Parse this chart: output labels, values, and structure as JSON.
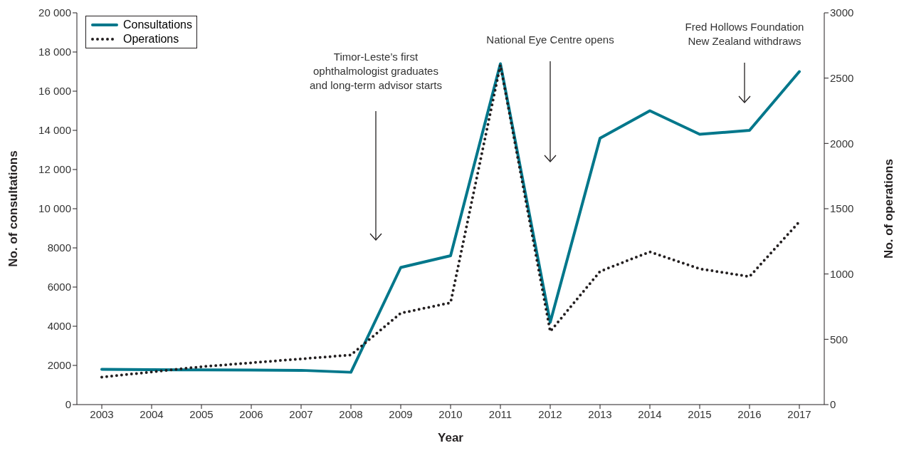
{
  "chart_data": {
    "type": "line",
    "xlabel": "Year",
    "ylabel": "No. of consultations",
    "y2label": "No. of operations",
    "categories": [
      "2003",
      "2004",
      "2005",
      "2006",
      "2007",
      "2008",
      "2009",
      "2010",
      "2011",
      "2012",
      "2013",
      "2014",
      "2015",
      "2016",
      "2017"
    ],
    "series": [
      {
        "name": "Consultations",
        "color": "#00778b",
        "line_style": "solid",
        "values": [
          1800,
          1780,
          1770,
          1760,
          1750,
          1650,
          7000,
          7600,
          17400,
          4200,
          13600,
          15000,
          13800,
          14000,
          17000
        ]
      },
      {
        "name": "Operations",
        "color": "#231f20",
        "line_style": "dotted",
        "axis": "y2",
        "values": [
          210,
          250,
          290,
          320,
          350,
          380,
          700,
          780,
          2600,
          560,
          1020,
          1170,
          1040,
          980,
          1400
        ]
      }
    ],
    "ylim": [
      0,
      20000
    ],
    "yticks": [
      0,
      {
        "value": 2000,
        "label": "2000"
      },
      {
        "value": 4000,
        "label": "4000"
      },
      {
        "value": 6000,
        "label": "6000"
      },
      {
        "value": 8000,
        "label": "8000"
      },
      {
        "value": 10000,
        "label": "10 000"
      },
      {
        "value": 12000,
        "label": "12 000"
      },
      {
        "value": 14000,
        "label": "14 000"
      },
      {
        "value": 16000,
        "label": "16 000"
      },
      {
        "value": 18000,
        "label": "18 000"
      },
      {
        "value": 20000,
        "label": "20 000"
      }
    ],
    "y2lim": [
      0,
      3000
    ],
    "y2ticks": [
      0,
      500,
      1000,
      1500,
      2000,
      2500,
      3000
    ],
    "legend": "top left",
    "grid": false,
    "marker": "none",
    "annotations": [
      "Timor-Leste’s first ophthalmologist graduates and long-term advisor starts",
      "National Eye Centre opens",
      "Fred Hollows Foundation New Zealand withdraws"
    ]
  }
}
